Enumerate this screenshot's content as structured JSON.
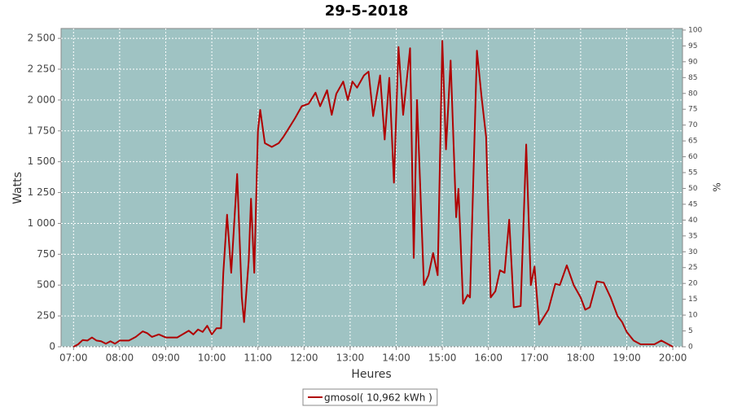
{
  "chart_data": {
    "type": "line",
    "title": "29-5-2018",
    "x_label": "Heures",
    "y_label": "Watts",
    "y2_label": "%",
    "xlim": [
      6.73,
      20.21
    ],
    "ylim": [
      0,
      2580
    ],
    "y2lim": [
      0,
      100.5
    ],
    "xticks": [
      {
        "value": 7,
        "label": "07:00"
      },
      {
        "value": 8,
        "label": "08:00"
      },
      {
        "value": 9,
        "label": "09:00"
      },
      {
        "value": 10,
        "label": "10:00"
      },
      {
        "value": 11,
        "label": "11:00"
      },
      {
        "value": 12,
        "label": "12:00"
      },
      {
        "value": 13,
        "label": "13:00"
      },
      {
        "value": 14,
        "label": "14:00"
      },
      {
        "value": 15,
        "label": "15:00"
      },
      {
        "value": 16,
        "label": "16:00"
      },
      {
        "value": 17,
        "label": "17:00"
      },
      {
        "value": 18,
        "label": "18:00"
      },
      {
        "value": 19,
        "label": "19:00"
      },
      {
        "value": 20,
        "label": "20:00"
      }
    ],
    "yticks": [
      0,
      {
        "value": 250,
        "label": "250"
      },
      {
        "value": 500,
        "label": "500"
      },
      {
        "value": 750,
        "label": "750"
      },
      {
        "value": 1000,
        "label": "1 000"
      },
      {
        "value": 1250,
        "label": "1 250"
      },
      {
        "value": 1500,
        "label": "1 500"
      },
      {
        "value": 1750,
        "label": "1 750"
      },
      {
        "value": 2000,
        "label": "2 000"
      },
      {
        "value": 2250,
        "label": "2 250"
      },
      {
        "value": 2500,
        "label": "2 500"
      }
    ],
    "y2ticks": [
      0,
      5,
      10,
      15,
      20,
      25,
      30,
      35,
      40,
      45,
      50,
      55,
      60,
      65,
      70,
      75,
      80,
      85,
      90,
      95,
      100
    ],
    "grid": true,
    "plot_background": "#9fc3c3",
    "legend": "bottom",
    "x": [
      7.0,
      7.1,
      7.2,
      7.3,
      7.4,
      7.5,
      7.6,
      7.7,
      7.8,
      7.9,
      8.0,
      8.2,
      8.35,
      8.5,
      8.6,
      8.7,
      8.85,
      9.0,
      9.25,
      9.5,
      9.6,
      9.7,
      9.8,
      9.9,
      10.0,
      10.1,
      10.2,
      10.25,
      10.33,
      10.42,
      10.55,
      10.65,
      10.7,
      10.8,
      10.85,
      10.92,
      11.0,
      11.05,
      11.15,
      11.3,
      11.45,
      11.55,
      11.65,
      11.8,
      11.95,
      12.1,
      12.25,
      12.35,
      12.5,
      12.6,
      12.7,
      12.85,
      12.95,
      13.05,
      13.15,
      13.3,
      13.4,
      13.5,
      13.65,
      13.75,
      13.85,
      13.95,
      14.05,
      14.15,
      14.3,
      14.38,
      14.45,
      14.6,
      14.7,
      14.8,
      14.9,
      15.0,
      15.08,
      15.18,
      15.3,
      15.35,
      15.45,
      15.55,
      15.6,
      15.75,
      15.85,
      15.95,
      16.05,
      16.15,
      16.25,
      16.35,
      16.45,
      16.55,
      16.7,
      16.82,
      16.92,
      17.0,
      17.1,
      17.3,
      17.45,
      17.55,
      17.7,
      17.85,
      18.0,
      18.1,
      18.2,
      18.35,
      18.5,
      18.65,
      18.8,
      18.9,
      19.0,
      19.15,
      19.3,
      19.6,
      19.75,
      20.0
    ],
    "series": [
      {
        "name": "gmosol( 10,962 kWh )",
        "color": "#b00000",
        "values": [
          0,
          20,
          55,
          50,
          75,
          50,
          45,
          25,
          45,
          25,
          50,
          50,
          80,
          125,
          110,
          80,
          100,
          75,
          75,
          130,
          100,
          140,
          120,
          170,
          100,
          150,
          150,
          600,
          1070,
          600,
          1400,
          400,
          200,
          700,
          1200,
          600,
          1750,
          1920,
          1650,
          1620,
          1650,
          1700,
          1760,
          1850,
          1950,
          1970,
          2060,
          1950,
          2080,
          1880,
          2050,
          2150,
          2000,
          2150,
          2100,
          2200,
          2230,
          1870,
          2200,
          1680,
          2180,
          1330,
          2430,
          1880,
          2420,
          720,
          2000,
          500,
          580,
          760,
          580,
          2480,
          1600,
          2320,
          1050,
          1280,
          350,
          420,
          400,
          2400,
          2030,
          1700,
          400,
          450,
          620,
          600,
          1030,
          320,
          330,
          1640,
          500,
          650,
          180,
          300,
          510,
          500,
          660,
          500,
          400,
          300,
          320,
          530,
          520,
          400,
          250,
          200,
          120,
          50,
          20,
          20,
          50,
          0
        ]
      }
    ]
  }
}
